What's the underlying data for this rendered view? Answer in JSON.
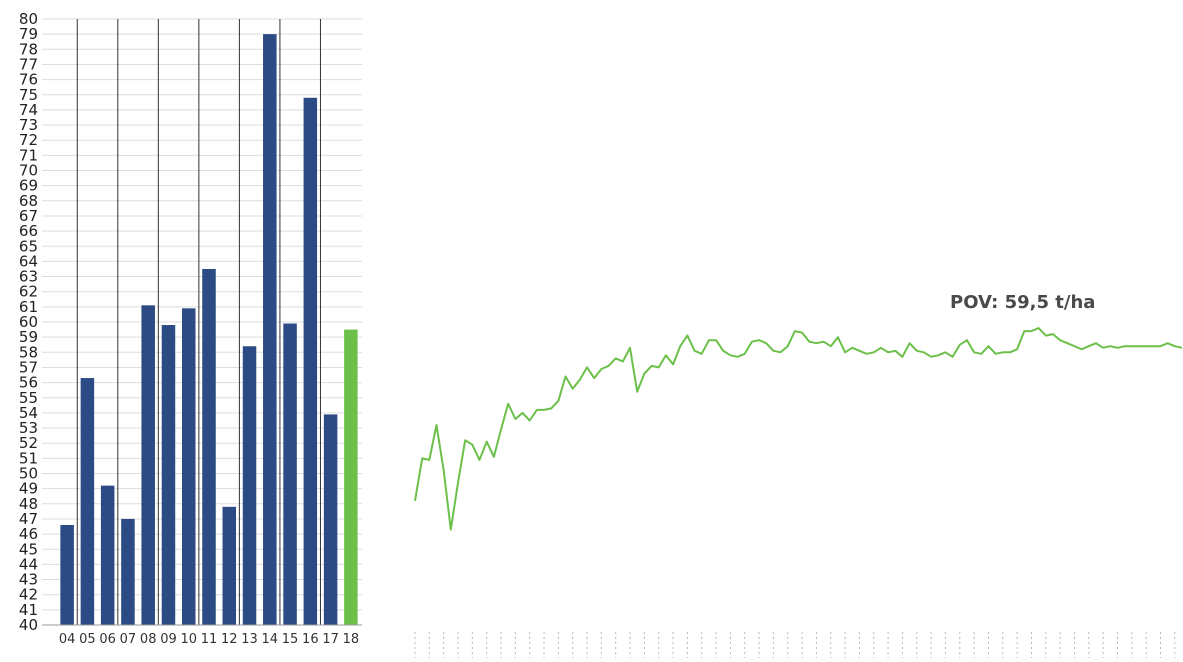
{
  "chart_data": [
    {
      "type": "bar",
      "categories": [
        "04",
        "05",
        "06",
        "07",
        "08",
        "09",
        "10",
        "11",
        "12",
        "13",
        "14",
        "15",
        "16",
        "17",
        "18"
      ],
      "values": [
        46.6,
        56.3,
        49.2,
        47.0,
        61.1,
        59.8,
        60.9,
        63.5,
        47.8,
        58.4,
        79.0,
        59.9,
        74.8,
        53.9,
        59.5
      ],
      "highlight_index": 14,
      "ylim": [
        40,
        80
      ],
      "ytick_step": 1,
      "grid": true,
      "colors": {
        "bar": "#2c4a83",
        "highlight": "#6cc04a",
        "grid": "#dddddd",
        "separator": "#333333"
      }
    },
    {
      "type": "line",
      "values": [
        48.2,
        51.0,
        50.9,
        53.2,
        50.2,
        46.3,
        49.4,
        52.2,
        51.9,
        50.9,
        52.1,
        51.1,
        52.9,
        54.6,
        53.6,
        54.0,
        53.5,
        54.2,
        54.2,
        54.3,
        54.8,
        56.4,
        55.6,
        56.2,
        57.0,
        56.3,
        56.9,
        57.1,
        57.6,
        57.4,
        58.3,
        55.4,
        56.6,
        57.1,
        57.0,
        57.8,
        57.2,
        58.4,
        59.1,
        58.1,
        57.9,
        58.8,
        58.8,
        58.1,
        57.8,
        57.7,
        57.9,
        58.7,
        58.8,
        58.6,
        58.1,
        58.0,
        58.4,
        59.4,
        59.3,
        58.7,
        58.6,
        58.7,
        58.4,
        59.0,
        58.0,
        58.3,
        58.1,
        57.9,
        58.0,
        58.3,
        58.0,
        58.1,
        57.7,
        58.6,
        58.1,
        58.0,
        57.7,
        57.8,
        58.0,
        57.7,
        58.5,
        58.8,
        58.0,
        57.9,
        58.4,
        57.9,
        58.0,
        58.0,
        58.2,
        59.4,
        59.4,
        59.6,
        59.1,
        59.2,
        58.8,
        58.6,
        58.4,
        58.2,
        58.4,
        58.6,
        58.3,
        58.4,
        58.3,
        58.4,
        58.4,
        58.4,
        58.4,
        58.4,
        58.4,
        58.6,
        58.4,
        58.3
      ],
      "ylim": [
        40,
        80
      ],
      "annotation": "POV: 59,5 t/ha",
      "colors": {
        "line": "#6cc04a",
        "tick": "#b8b8b8"
      }
    }
  ]
}
